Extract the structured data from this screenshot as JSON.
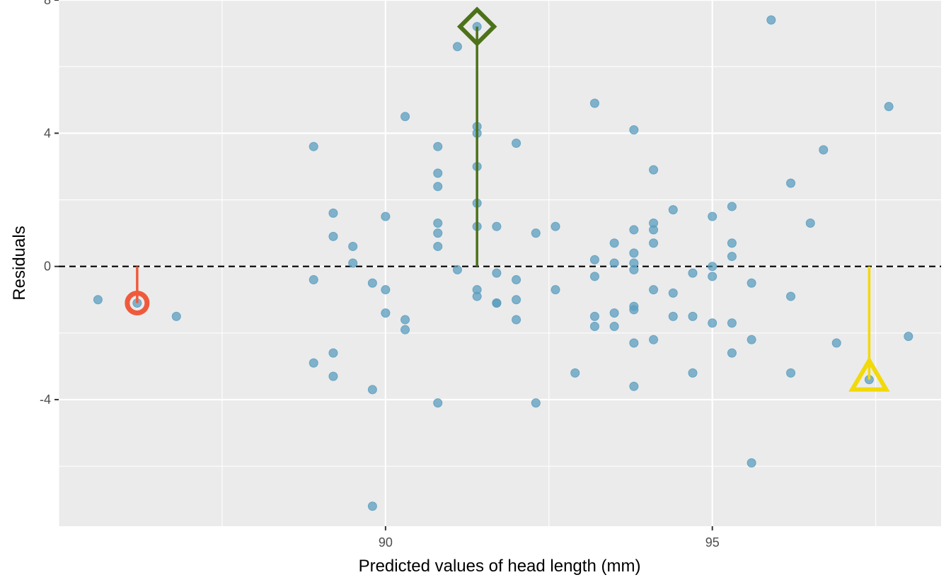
{
  "chart_data": {
    "type": "scatter",
    "title": "",
    "xlabel": "Predicted values of head length (mm)",
    "ylabel": "Residuals",
    "xlim": [
      85.0,
      98.5
    ],
    "ylim": [
      -7.8,
      8.0
    ],
    "x_ticks": [
      90,
      95
    ],
    "x_tick_labels": [
      "90",
      "95"
    ],
    "y_ticks": [
      -4,
      0,
      4,
      8
    ],
    "y_tick_labels": [
      "-4",
      "0",
      "4",
      "8"
    ],
    "grid": true,
    "reference_line": {
      "y": 0,
      "style": "dashed",
      "color": "#000000"
    },
    "point_color": "#5b9ebf",
    "points": [
      {
        "x": 85.6,
        "y": -1.0
      },
      {
        "x": 86.2,
        "y": -1.1
      },
      {
        "x": 86.8,
        "y": -1.5
      },
      {
        "x": 88.9,
        "y": 3.6
      },
      {
        "x": 88.9,
        "y": -0.4
      },
      {
        "x": 88.9,
        "y": -2.9
      },
      {
        "x": 89.2,
        "y": 1.6
      },
      {
        "x": 89.2,
        "y": 0.9
      },
      {
        "x": 89.2,
        "y": -2.6
      },
      {
        "x": 89.2,
        "y": -3.3
      },
      {
        "x": 89.5,
        "y": 0.6
      },
      {
        "x": 89.5,
        "y": 0.1
      },
      {
        "x": 89.8,
        "y": -0.5
      },
      {
        "x": 89.8,
        "y": -3.7
      },
      {
        "x": 89.8,
        "y": -7.2
      },
      {
        "x": 90.0,
        "y": 1.5
      },
      {
        "x": 90.0,
        "y": -0.7
      },
      {
        "x": 90.0,
        "y": -1.4
      },
      {
        "x": 90.3,
        "y": 4.5
      },
      {
        "x": 90.3,
        "y": -1.6
      },
      {
        "x": 90.3,
        "y": -1.9
      },
      {
        "x": 90.8,
        "y": 3.6
      },
      {
        "x": 90.8,
        "y": 2.8
      },
      {
        "x": 90.8,
        "y": 2.4
      },
      {
        "x": 90.8,
        "y": 1.3
      },
      {
        "x": 90.8,
        "y": 1.0
      },
      {
        "x": 90.8,
        "y": 0.6
      },
      {
        "x": 90.8,
        "y": -4.1
      },
      {
        "x": 91.1,
        "y": 6.6
      },
      {
        "x": 91.1,
        "y": -0.1
      },
      {
        "x": 91.4,
        "y": 7.2
      },
      {
        "x": 91.4,
        "y": 4.2
      },
      {
        "x": 91.4,
        "y": 4.0
      },
      {
        "x": 91.4,
        "y": 3.0
      },
      {
        "x": 91.4,
        "y": 1.9
      },
      {
        "x": 91.4,
        "y": 1.2
      },
      {
        "x": 91.4,
        "y": -0.7
      },
      {
        "x": 91.4,
        "y": -0.9
      },
      {
        "x": 91.7,
        "y": 1.2
      },
      {
        "x": 91.7,
        "y": -0.2
      },
      {
        "x": 91.7,
        "y": -1.1
      },
      {
        "x": 91.7,
        "y": -1.1
      },
      {
        "x": 92.0,
        "y": 3.7
      },
      {
        "x": 92.0,
        "y": -0.4
      },
      {
        "x": 92.0,
        "y": -1.0
      },
      {
        "x": 92.0,
        "y": -1.6
      },
      {
        "x": 92.3,
        "y": 1.0
      },
      {
        "x": 92.3,
        "y": -4.1
      },
      {
        "x": 92.6,
        "y": 1.2
      },
      {
        "x": 92.6,
        "y": -0.7
      },
      {
        "x": 92.9,
        "y": -3.2
      },
      {
        "x": 93.2,
        "y": 4.9
      },
      {
        "x": 93.2,
        "y": 0.2
      },
      {
        "x": 93.2,
        "y": -0.3
      },
      {
        "x": 93.2,
        "y": -1.5
      },
      {
        "x": 93.2,
        "y": -1.8
      },
      {
        "x": 93.5,
        "y": 0.7
      },
      {
        "x": 93.5,
        "y": 0.1
      },
      {
        "x": 93.5,
        "y": -1.4
      },
      {
        "x": 93.5,
        "y": -1.8
      },
      {
        "x": 93.8,
        "y": 4.1
      },
      {
        "x": 93.8,
        "y": 1.1
      },
      {
        "x": 93.8,
        "y": 0.4
      },
      {
        "x": 93.8,
        "y": 0.1
      },
      {
        "x": 93.8,
        "y": -0.1
      },
      {
        "x": 93.8,
        "y": -1.2
      },
      {
        "x": 93.8,
        "y": -1.3
      },
      {
        "x": 93.8,
        "y": -2.3
      },
      {
        "x": 93.8,
        "y": -3.6
      },
      {
        "x": 94.1,
        "y": 2.9
      },
      {
        "x": 94.1,
        "y": 1.3
      },
      {
        "x": 94.1,
        "y": 1.1
      },
      {
        "x": 94.1,
        "y": 0.7
      },
      {
        "x": 94.1,
        "y": -0.7
      },
      {
        "x": 94.1,
        "y": -2.2
      },
      {
        "x": 94.4,
        "y": 1.7
      },
      {
        "x": 94.4,
        "y": -0.8
      },
      {
        "x": 94.4,
        "y": -1.5
      },
      {
        "x": 94.7,
        "y": -0.2
      },
      {
        "x": 94.7,
        "y": -1.5
      },
      {
        "x": 94.7,
        "y": -3.2
      },
      {
        "x": 95.0,
        "y": 1.5
      },
      {
        "x": 95.0,
        "y": 0.0
      },
      {
        "x": 95.0,
        "y": -0.3
      },
      {
        "x": 95.0,
        "y": -1.7
      },
      {
        "x": 95.3,
        "y": 1.8
      },
      {
        "x": 95.3,
        "y": 0.7
      },
      {
        "x": 95.3,
        "y": 0.3
      },
      {
        "x": 95.3,
        "y": -1.7
      },
      {
        "x": 95.3,
        "y": -2.6
      },
      {
        "x": 95.6,
        "y": -0.5
      },
      {
        "x": 95.6,
        "y": -2.2
      },
      {
        "x": 95.6,
        "y": -5.9
      },
      {
        "x": 95.9,
        "y": 7.4
      },
      {
        "x": 96.2,
        "y": 2.5
      },
      {
        "x": 96.2,
        "y": -0.9
      },
      {
        "x": 96.2,
        "y": -3.2
      },
      {
        "x": 96.5,
        "y": 1.3
      },
      {
        "x": 96.7,
        "y": 3.5
      },
      {
        "x": 96.9,
        "y": -2.3
      },
      {
        "x": 97.4,
        "y": -3.4
      },
      {
        "x": 97.7,
        "y": 4.8
      },
      {
        "x": 98.0,
        "y": -2.1
      }
    ],
    "highlights": [
      {
        "name": "circle",
        "x": 86.2,
        "y": -1.1,
        "color": "#f05a3c"
      },
      {
        "name": "diamond",
        "x": 91.4,
        "y": 7.2,
        "color": "#4d7219"
      },
      {
        "name": "triangle",
        "x": 97.4,
        "y": -3.4,
        "color": "#f2d90a"
      }
    ]
  }
}
